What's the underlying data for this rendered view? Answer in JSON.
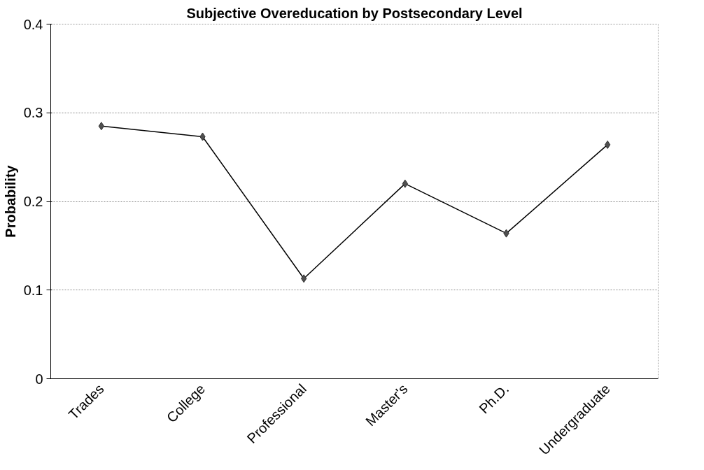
{
  "chart_data": {
    "type": "line",
    "title": "Subjective Overeducation by Postsecondary Level",
    "ylabel": "Probability",
    "categories": [
      "Trades",
      "College",
      "Professional",
      "Master's",
      "Ph.D.",
      "Undergraduate"
    ],
    "series": [
      {
        "color": "#000000",
        "values": [
          0.285,
          0.273,
          0.113,
          0.22,
          0.164,
          0.264
        ]
      }
    ],
    "ylim": [
      0,
      0.4
    ],
    "yticks": [
      0,
      0.1,
      0.2,
      0.3,
      0.4
    ],
    "grid": "y",
    "marker": "diamond",
    "line_style": "solid"
  }
}
